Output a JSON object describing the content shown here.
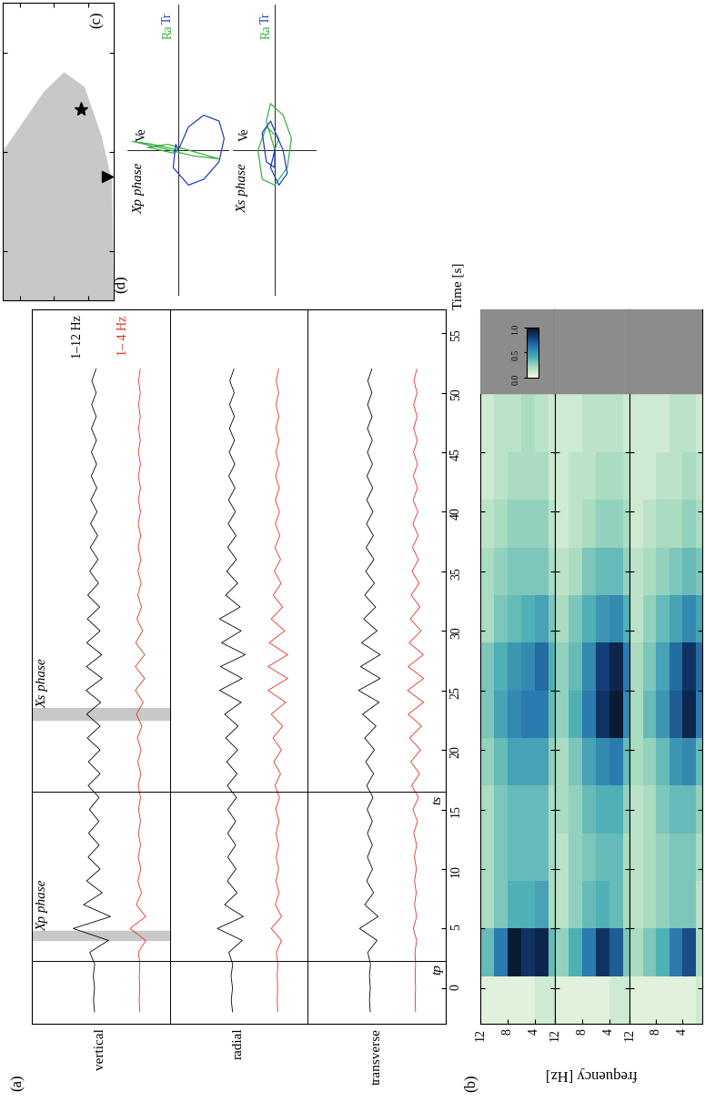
{
  "chart_data": [
    {
      "type": "seismogram",
      "panel": "(a)",
      "xlabel": "Time [s]",
      "xlim": [
        -3,
        57
      ],
      "xticks": [
        0,
        5,
        10,
        15,
        20,
        25,
        30,
        35,
        40,
        45,
        50,
        55
      ],
      "components": [
        "vertical",
        "radial",
        "transverse"
      ],
      "filters": [
        {
          "label": "1–12 Hz",
          "color": "#000000"
        },
        {
          "label": "1– 4 Hz",
          "color": "#e0301e"
        }
      ],
      "x": [
        -2,
        -1,
        0,
        1,
        2,
        3,
        4,
        5,
        6,
        7,
        8,
        9,
        10,
        11,
        12,
        13,
        14,
        15,
        16,
        17,
        18,
        19,
        20,
        21,
        22,
        23,
        24,
        25,
        26,
        27,
        28,
        29,
        30,
        31,
        32,
        33,
        34,
        35,
        36,
        37,
        38,
        39,
        40,
        41,
        42,
        43,
        44,
        45,
        46,
        47,
        48,
        49,
        50,
        51,
        52
      ],
      "series": [
        {
          "component": "vertical",
          "filter": "1–12 Hz",
          "values": [
            0.03,
            -0.02,
            0.03,
            -0.03,
            0.04,
            -0.2,
            0.7,
            -1.0,
            0.8,
            -0.5,
            0.4,
            -0.35,
            0.3,
            -0.28,
            0.25,
            -0.26,
            0.24,
            -0.22,
            0.25,
            -0.28,
            0.3,
            -0.27,
            0.3,
            -0.32,
            0.3,
            -0.35,
            0.33,
            -0.38,
            0.4,
            -0.36,
            0.38,
            -0.35,
            0.3,
            -0.32,
            0.28,
            -0.3,
            0.22,
            -0.2,
            0.2,
            -0.18,
            0.18,
            -0.16,
            0.15,
            -0.15,
            0.14,
            -0.13,
            0.13,
            -0.12,
            0.12,
            -0.12,
            0.11,
            -0.11,
            0.11,
            -0.1,
            0.1
          ]
        },
        {
          "component": "vertical",
          "filter": "1– 4 Hz",
          "values": [
            0.01,
            -0.01,
            0.01,
            -0.01,
            0.02,
            -0.05,
            0.3,
            -0.45,
            0.3,
            -0.15,
            0.1,
            -0.08,
            0.07,
            -0.06,
            0.05,
            -0.05,
            0.05,
            -0.04,
            0.05,
            -0.06,
            0.07,
            -0.08,
            0.08,
            -0.1,
            0.12,
            -0.15,
            0.18,
            -0.2,
            0.25,
            -0.2,
            0.25,
            -0.18,
            0.15,
            -0.12,
            0.1,
            -0.08,
            0.08,
            -0.07,
            0.07,
            -0.06,
            0.06,
            -0.06,
            0.05,
            -0.05,
            0.05,
            -0.05,
            0.05,
            -0.05,
            0.04,
            -0.04,
            0.04,
            -0.04,
            0.04,
            -0.04,
            0.04
          ]
        },
        {
          "component": "radial",
          "filter": "1–12 Hz",
          "values": [
            0.03,
            -0.03,
            0.03,
            -0.04,
            0.04,
            -0.15,
            0.5,
            -0.7,
            0.55,
            -0.35,
            0.25,
            -0.22,
            0.2,
            -0.2,
            0.18,
            -0.2,
            0.18,
            -0.2,
            0.22,
            -0.22,
            0.25,
            -0.25,
            0.28,
            -0.3,
            0.3,
            -0.35,
            0.45,
            -0.6,
            0.5,
            -0.55,
            0.65,
            -0.5,
            0.45,
            -0.6,
            0.4,
            -0.3,
            0.28,
            -0.25,
            0.22,
            -0.2,
            0.2,
            -0.18,
            0.17,
            -0.16,
            0.15,
            -0.15,
            0.14,
            -0.13,
            0.13,
            -0.12,
            0.12,
            -0.11,
            0.11,
            -0.1,
            0.1
          ]
        },
        {
          "component": "radial",
          "filter": "1– 4 Hz",
          "values": [
            0.01,
            -0.01,
            0.01,
            -0.01,
            0.02,
            -0.05,
            0.2,
            -0.3,
            0.2,
            -0.1,
            0.08,
            -0.07,
            0.06,
            -0.06,
            0.06,
            -0.07,
            0.08,
            -0.08,
            0.1,
            -0.12,
            0.15,
            -0.18,
            0.2,
            -0.22,
            0.25,
            -0.3,
            0.4,
            -0.45,
            0.5,
            -0.45,
            0.5,
            -0.4,
            0.35,
            -0.3,
            0.25,
            -0.2,
            0.18,
            -0.15,
            0.15,
            -0.12,
            0.12,
            -0.1,
            0.1,
            -0.1,
            0.09,
            -0.09,
            0.08,
            -0.08,
            0.08,
            -0.07,
            0.07,
            -0.07,
            0.06,
            -0.06,
            0.06
          ]
        },
        {
          "component": "transverse",
          "filter": "1–12 Hz",
          "values": [
            0.02,
            -0.02,
            0.02,
            -0.02,
            0.03,
            -0.1,
            0.35,
            -0.5,
            0.4,
            -0.25,
            0.18,
            -0.15,
            0.13,
            -0.12,
            0.12,
            -0.12,
            0.12,
            -0.13,
            0.15,
            -0.15,
            0.18,
            -0.2,
            0.22,
            -0.25,
            0.3,
            -0.35,
            0.45,
            -0.55,
            0.5,
            -0.45,
            0.5,
            -0.4,
            0.35,
            -0.3,
            0.28,
            -0.25,
            0.22,
            -0.2,
            0.2,
            -0.18,
            0.17,
            -0.16,
            0.15,
            -0.15,
            0.14,
            -0.14,
            0.13,
            -0.12,
            0.12,
            -0.12,
            0.11,
            -0.11,
            0.1,
            -0.1,
            0.1
          ]
        },
        {
          "component": "transverse",
          "filter": "1– 4 Hz",
          "values": [
            0.01,
            -0.01,
            0.01,
            -0.01,
            0.01,
            -0.02,
            0.06,
            -0.1,
            0.06,
            -0.04,
            0.04,
            -0.04,
            0.05,
            -0.05,
            0.06,
            -0.08,
            0.1,
            -0.12,
            0.15,
            -0.18,
            0.2,
            -0.22,
            0.25,
            -0.28,
            0.3,
            -0.35,
            0.4,
            -0.38,
            0.4,
            -0.35,
            0.38,
            -0.3,
            0.28,
            -0.25,
            0.22,
            -0.2,
            0.18,
            -0.16,
            0.15,
            -0.14,
            0.13,
            -0.12,
            0.12,
            -0.11,
            0.1,
            -0.1,
            0.1,
            -0.09,
            0.09,
            -0.08,
            0.08,
            -0.08,
            0.08,
            -0.07,
            0.07
          ]
        }
      ],
      "markers": [
        {
          "label": "tp",
          "value": 2.3
        },
        {
          "label": "ts",
          "value": 16.5
        }
      ],
      "windows": [
        {
          "label": "Xp phase",
          "range": [
            4.0,
            4.8
          ],
          "component": "vertical"
        },
        {
          "label": "Xs phase",
          "range": [
            22.5,
            23.5
          ],
          "component": "vertical"
        }
      ]
    },
    {
      "type": "spectrogram",
      "panel": "(b)",
      "ylabel": "frequency [Hz]",
      "xlim": [
        -3,
        57
      ],
      "xticks": [
        0,
        5,
        10,
        15,
        20,
        25,
        30,
        35,
        40,
        45,
        50,
        55
      ],
      "ylim": [
        1,
        12
      ],
      "yticks": [
        4,
        8,
        12
      ],
      "tick_labels": "y",
      "time_edges": [
        -3,
        1,
        5,
        9,
        13,
        17,
        21,
        25,
        29,
        33,
        37,
        41,
        45,
        50
      ],
      "freq_edges": [
        0,
        2,
        4,
        6,
        8,
        10,
        12
      ],
      "no_data_from": 50,
      "components": [
        {
          "component": "vertical",
          "cells": [
            [
              0.1,
              0.35,
              0.2,
              0.2,
              0.2,
              0.25,
              0.35,
              0.4,
              0.3,
              0.2,
              0.15,
              0.1,
              0.1
            ],
            [
              0.1,
              0.9,
              0.45,
              0.35,
              0.35,
              0.45,
              0.6,
              0.65,
              0.45,
              0.3,
              0.25,
              0.2,
              0.15
            ],
            [
              0.05,
              0.85,
              0.4,
              0.35,
              0.35,
              0.45,
              0.6,
              0.55,
              0.4,
              0.3,
              0.25,
              0.2,
              0.2
            ],
            [
              0.05,
              0.95,
              0.4,
              0.35,
              0.35,
              0.45,
              0.55,
              0.5,
              0.35,
              0.3,
              0.25,
              0.2,
              0.15
            ],
            [
              0.05,
              0.6,
              0.3,
              0.3,
              0.3,
              0.35,
              0.45,
              0.4,
              0.3,
              0.25,
              0.2,
              0.15,
              0.15
            ],
            [
              0.05,
              0.35,
              0.2,
              0.2,
              0.2,
              0.25,
              0.3,
              0.3,
              0.2,
              0.2,
              0.15,
              0.1,
              0.1
            ]
          ]
        },
        {
          "component": "radial",
          "cells": [
            [
              0.1,
              0.3,
              0.2,
              0.2,
              0.25,
              0.35,
              0.55,
              0.6,
              0.4,
              0.25,
              0.2,
              0.15,
              0.1
            ],
            [
              0.1,
              0.7,
              0.35,
              0.35,
              0.4,
              0.6,
              0.95,
              0.9,
              0.55,
              0.35,
              0.25,
              0.2,
              0.15
            ],
            [
              0.05,
              0.85,
              0.4,
              0.35,
              0.4,
              0.55,
              0.85,
              0.8,
              0.5,
              0.35,
              0.25,
              0.2,
              0.15
            ],
            [
              0.05,
              0.6,
              0.35,
              0.3,
              0.35,
              0.45,
              0.6,
              0.55,
              0.4,
              0.3,
              0.2,
              0.15,
              0.15
            ],
            [
              0.05,
              0.4,
              0.25,
              0.25,
              0.25,
              0.3,
              0.4,
              0.35,
              0.3,
              0.2,
              0.15,
              0.15,
              0.1
            ],
            [
              0.05,
              0.25,
              0.15,
              0.15,
              0.2,
              0.2,
              0.25,
              0.25,
              0.2,
              0.15,
              0.1,
              0.1,
              0.1
            ]
          ]
        },
        {
          "component": "transverse",
          "cells": [
            [
              0.1,
              0.2,
              0.15,
              0.2,
              0.25,
              0.35,
              0.6,
              0.65,
              0.45,
              0.3,
              0.2,
              0.15,
              0.1
            ],
            [
              0.05,
              0.75,
              0.3,
              0.3,
              0.35,
              0.55,
              0.9,
              0.85,
              0.55,
              0.35,
              0.25,
              0.2,
              0.15
            ],
            [
              0.05,
              0.6,
              0.3,
              0.3,
              0.35,
              0.5,
              0.7,
              0.65,
              0.45,
              0.3,
              0.2,
              0.15,
              0.15
            ],
            [
              0.05,
              0.4,
              0.25,
              0.25,
              0.3,
              0.35,
              0.5,
              0.45,
              0.35,
              0.25,
              0.2,
              0.15,
              0.1
            ],
            [
              0.05,
              0.3,
              0.2,
              0.2,
              0.2,
              0.25,
              0.35,
              0.3,
              0.25,
              0.2,
              0.15,
              0.1,
              0.1
            ],
            [
              0.05,
              0.2,
              0.15,
              0.15,
              0.15,
              0.2,
              0.2,
              0.2,
              0.15,
              0.15,
              0.1,
              0.1,
              0.1
            ]
          ]
        }
      ],
      "colorbar": {
        "range": [
          0,
          1
        ],
        "ticks": [
          {
            "value": 0,
            "label": "0.0"
          },
          {
            "value": 0.5,
            "label": "0.5"
          },
          {
            "value": 1,
            "label": "1.0"
          }
        ]
      }
    },
    {
      "type": "map",
      "panel": "(c)",
      "xlim": [
        19.5,
        26
      ],
      "ylim": [
        54,
        60
      ],
      "xticks": [
        21,
        23,
        25
      ],
      "yticks": [
        55,
        57,
        59
      ],
      "tick_labels": false,
      "land": [
        [
          26,
          54
        ],
        [
          26,
          57
        ],
        [
          24.8,
          57.6
        ],
        [
          23.6,
          58.2
        ],
        [
          22.4,
          58.6
        ],
        [
          21.2,
          58.3
        ],
        [
          20.2,
          57.3
        ],
        [
          19.6,
          56.4
        ],
        [
          19.5,
          54
        ]
      ],
      "event": [
        21.4,
        57.85
      ],
      "station": [
        19.86,
        56.5
      ]
    },
    {
      "type": "particle_motion",
      "panel": "(d)",
      "xlabel": "Ve",
      "xlim": [
        -1,
        1
      ],
      "ylim": [
        -2.5,
        2.5
      ],
      "tick_labels": false,
      "plots": [
        {
          "title": "Xp phase",
          "series": [
            {
              "name": "Ra",
              "color": "#3cb043",
              "x": [
                0,
                0.5,
                0.9,
                0.4,
                -0.3,
                -0.8,
                -0.4,
                0.2,
                0.6,
                0.1,
                0
              ],
              "y": [
                0,
                0.1,
                0.15,
                0.05,
                -0.1,
                -0.15,
                -0.05,
                0.1,
                0.05,
                -0.05,
                0
              ]
            },
            {
              "name": "Tr",
              "color": "#2040c0",
              "x": [
                0,
                -0.2,
                -0.5,
                -0.8,
                -0.9,
                -0.8,
                -0.5,
                -0.2,
                0.1,
                0.05,
                0
              ],
              "y": [
                0,
                0.4,
                0.6,
                0.5,
                0.2,
                -0.2,
                -0.5,
                -0.6,
                -0.3,
                0.1,
                0
              ]
            }
          ]
        },
        {
          "title": "Xs phase",
          "series": [
            {
              "name": "Ra",
              "color": "#3cb043",
              "x": [
                0,
                0.2,
                0.1,
                -0.2,
                -0.4,
                -0.3,
                0,
                0.3,
                0.4,
                0.2,
                -0.1,
                0
              ],
              "y": [
                0,
                0.5,
                0.8,
                0.6,
                0.2,
                -0.3,
                -0.6,
                -0.5,
                0,
                0.4,
                0.2,
                0
              ]
            },
            {
              "name": "Tr",
              "color": "#2040c0",
              "x": [
                0,
                0.1,
                -0.1,
                -0.3,
                -0.2,
                0.1,
                0.3,
                0.2,
                0,
                0
              ],
              "y": [
                0,
                -0.3,
                -0.6,
                -0.4,
                0,
                0.5,
                0.3,
                -0.2,
                -0.3,
                0
              ]
            }
          ]
        }
      ]
    }
  ]
}
